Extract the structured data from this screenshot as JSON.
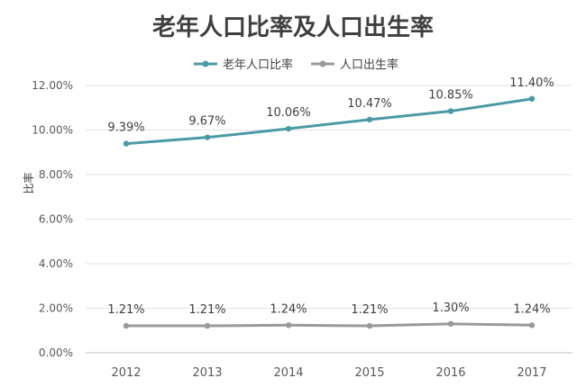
{
  "chart_data": {
    "type": "line",
    "title": "老年人口比率及人口出生率",
    "ylabel": "比率",
    "xlabel": "",
    "x": [
      "2012",
      "2013",
      "2014",
      "2015",
      "2016",
      "2017"
    ],
    "ylim": [
      0,
      12
    ],
    "y_ticks": [
      "0.00%",
      "2.00%",
      "4.00%",
      "6.00%",
      "8.00%",
      "10.00%",
      "12.00%"
    ],
    "grid": true,
    "legend_position": "top",
    "series": [
      {
        "name": "老年人口比率",
        "values": [
          9.39,
          9.67,
          10.06,
          10.47,
          10.85,
          11.4
        ],
        "labels": [
          "9.39%",
          "9.67%",
          "10.06%",
          "10.47%",
          "10.85%",
          "11.40%"
        ],
        "color": "#4a9aa6"
      },
      {
        "name": "人口出生率",
        "values": [
          1.21,
          1.21,
          1.24,
          1.21,
          1.3,
          1.24
        ],
        "labels": [
          "1.21%",
          "1.21%",
          "1.24%",
          "1.21%",
          "1.30%",
          "1.24%"
        ],
        "color": "#9a9a9a"
      }
    ]
  }
}
